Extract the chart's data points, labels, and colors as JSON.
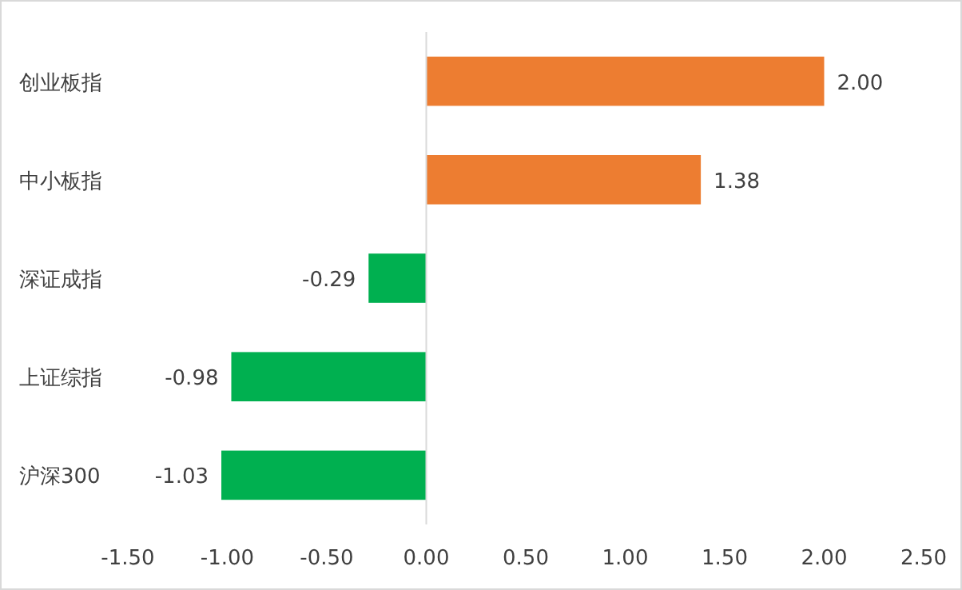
{
  "chart_data": {
    "type": "bar",
    "orientation": "horizontal",
    "categories": [
      "创业板指",
      "中小板指",
      "深证成指",
      "上证综指",
      "沪深300"
    ],
    "values": [
      2.0,
      1.38,
      -0.29,
      -0.98,
      -1.03
    ],
    "colors": [
      "#ed7d31",
      "#ed7d31",
      "#00b050",
      "#00b050",
      "#00b050"
    ],
    "value_labels": [
      "2.00",
      "1.38",
      "-0.29",
      "-0.98",
      "-1.03"
    ],
    "xlim": [
      -1.5,
      2.5
    ],
    "xticks": [
      {
        "value": -1.5,
        "label": "-1.50"
      },
      {
        "value": -1.0,
        "label": "-1.00"
      },
      {
        "value": -0.5,
        "label": "-0.50"
      },
      {
        "value": 0,
        "label": "0.00"
      },
      {
        "value": 0.5,
        "label": "0.50"
      },
      {
        "value": 1.0,
        "label": "1.00"
      },
      {
        "value": 1.5,
        "label": "1.50"
      },
      {
        "value": 2.0,
        "label": "2.00"
      },
      {
        "value": 2.5,
        "label": "2.50"
      }
    ]
  }
}
